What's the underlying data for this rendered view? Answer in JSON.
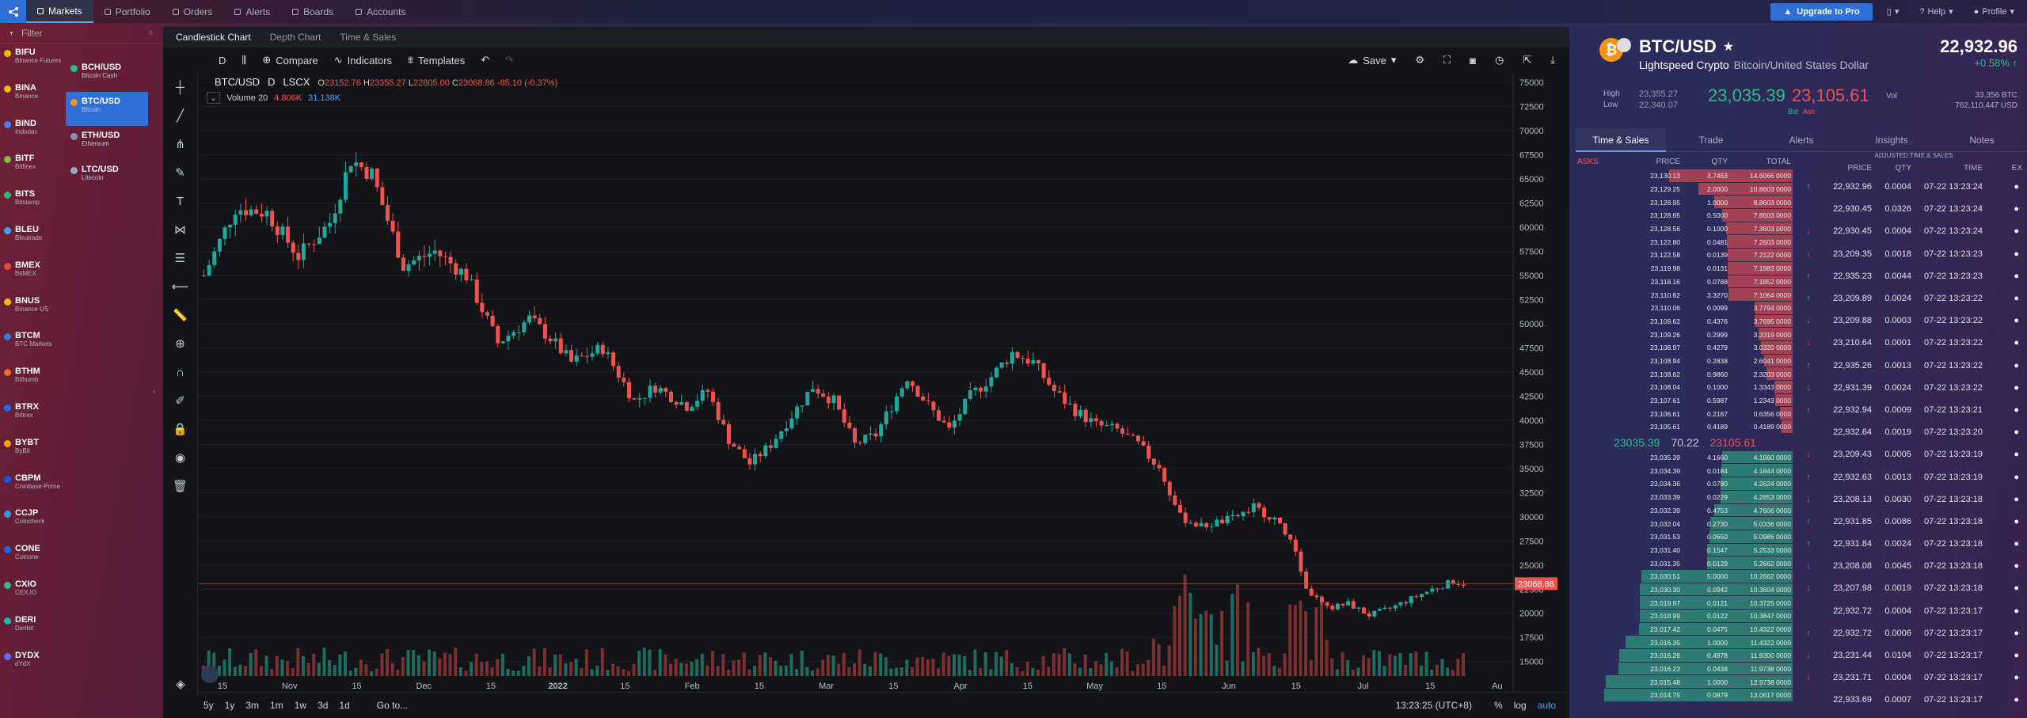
{
  "nav": {
    "items": [
      "Markets",
      "Portfolio",
      "Orders",
      "Alerts",
      "Boards",
      "Accounts"
    ],
    "active": 0,
    "upgrade": "Upgrade to Pro",
    "help": "Help",
    "profile": "Profile"
  },
  "filter": {
    "placeholder": "Filter"
  },
  "exchanges": [
    {
      "code": "BIFU",
      "sub": "Binance Futures",
      "color": "#f0b90b"
    },
    {
      "code": "BINA",
      "sub": "Binance",
      "color": "#f0b90b"
    },
    {
      "code": "BIND",
      "sub": "Indodax",
      "color": "#3b82f6"
    },
    {
      "code": "BITF",
      "sub": "Bitfinex",
      "color": "#7ac142"
    },
    {
      "code": "BITS",
      "sub": "Bitstamp",
      "color": "#2dba6e"
    },
    {
      "code": "BLEU",
      "sub": "Bleutrade",
      "color": "#3da5f4"
    },
    {
      "code": "BMEX",
      "sub": "BitMEX",
      "color": "#e24a4a"
    },
    {
      "code": "BNUS",
      "sub": "Binance US",
      "color": "#f0b90b"
    },
    {
      "code": "BTCM",
      "sub": "BTC Markets",
      "color": "#2f7de1"
    },
    {
      "code": "BTHM",
      "sub": "Bithumb",
      "color": "#f36a23"
    },
    {
      "code": "BTRX",
      "sub": "Bittrex",
      "color": "#1e6ee8"
    },
    {
      "code": "BYBT",
      "sub": "ByBit",
      "color": "#f7a600"
    },
    {
      "code": "CBPM",
      "sub": "Coinbase Prime",
      "color": "#1652f0"
    },
    {
      "code": "CCJP",
      "sub": "Coincheck",
      "color": "#2c9ad8"
    },
    {
      "code": "CONE",
      "sub": "Coinone",
      "color": "#1c64f2"
    },
    {
      "code": "CXIO",
      "sub": "CEX.IO",
      "color": "#2ebd85"
    },
    {
      "code": "DERI",
      "sub": "Deribit",
      "color": "#1bb89f"
    },
    {
      "code": "DYDX",
      "sub": "dYdX",
      "color": "#6966ff"
    }
  ],
  "pairs": [
    {
      "code": "BCH/USD",
      "sub": "Bitcoin Cash",
      "color": "#2ebd85"
    },
    {
      "code": "BTC/USD",
      "sub": "Bitcoin",
      "color": "#f7931a",
      "selected": true
    },
    {
      "code": "ETH/USD",
      "sub": "Ethereum",
      "color": "#8a92b2"
    },
    {
      "code": "LTC/USD",
      "sub": "Litecoin",
      "color": "#a0a6b4"
    }
  ],
  "chart_tabs": [
    "Candlestick Chart",
    "Depth Chart",
    "Time & Sales"
  ],
  "toolbar": {
    "interval": "D",
    "compare": "Compare",
    "indicators": "Indicators",
    "templates": "Templates",
    "save": "Save"
  },
  "legend": {
    "symbol": "BTC/USD",
    "interval": "D",
    "exchange": "LSCX",
    "o_label": "O",
    "o": "23152.76",
    "h_label": "H",
    "h": "23355.27",
    "l_label": "L",
    "l": "22805.00",
    "c_label": "C",
    "c": "23068.86",
    "chg": "-85.10 (-0.37%)",
    "vol_label": "Volume 20",
    "vol1": "4.806K",
    "vol2": "31.138K",
    "last_tag": "23068.86"
  },
  "bottom": {
    "ranges": [
      "5y",
      "1y",
      "3m",
      "1m",
      "1w",
      "3d",
      "1d"
    ],
    "goto": "Go to...",
    "time": "13:23:25 (UTC+8)",
    "pct": "%",
    "log": "log",
    "auto": "auto"
  },
  "chart_data": {
    "type": "candlestick",
    "x_ticks": [
      "15",
      "Nov",
      "15",
      "Dec",
      "15",
      "2022",
      "15",
      "Feb",
      "15",
      "Mar",
      "15",
      "Apr",
      "15",
      "May",
      "15",
      "Jun",
      "15",
      "Jul",
      "15",
      "Au"
    ],
    "y_ticks": [
      75000,
      72500,
      70000,
      67500,
      65000,
      62500,
      60000,
      57500,
      55000,
      52500,
      50000,
      47500,
      45000,
      42500,
      40000,
      37500,
      35000,
      32500,
      30000,
      27500,
      25000,
      22500,
      20000,
      17500,
      15000
    ],
    "ylim": [
      13500,
      75500
    ],
    "close_path": [
      [
        0,
        55000
      ],
      [
        6,
        62000
      ],
      [
        12,
        61500
      ],
      [
        18,
        57000
      ],
      [
        24,
        60500
      ],
      [
        28,
        67000
      ],
      [
        32,
        65500
      ],
      [
        38,
        56000
      ],
      [
        44,
        57500
      ],
      [
        50,
        55000
      ],
      [
        56,
        48000
      ],
      [
        62,
        50500
      ],
      [
        66,
        48500
      ],
      [
        70,
        46000
      ],
      [
        76,
        47500
      ],
      [
        82,
        42000
      ],
      [
        86,
        43500
      ],
      [
        92,
        41500
      ],
      [
        96,
        43000
      ],
      [
        100,
        38000
      ],
      [
        104,
        35500
      ],
      [
        108,
        37500
      ],
      [
        112,
        40500
      ],
      [
        116,
        43500
      ],
      [
        120,
        42000
      ],
      [
        124,
        37500
      ],
      [
        128,
        38500
      ],
      [
        134,
        44500
      ],
      [
        138,
        41500
      ],
      [
        142,
        39000
      ],
      [
        146,
        42500
      ],
      [
        150,
        44500
      ],
      [
        154,
        47000
      ],
      [
        158,
        46000
      ],
      [
        162,
        43000
      ],
      [
        166,
        41000
      ],
      [
        170,
        39500
      ],
      [
        174,
        39000
      ],
      [
        178,
        37500
      ],
      [
        182,
        35000
      ],
      [
        186,
        30000
      ],
      [
        190,
        29000
      ],
      [
        196,
        29800
      ],
      [
        200,
        31000
      ],
      [
        204,
        29800
      ],
      [
        208,
        26500
      ],
      [
        210,
        22500
      ],
      [
        214,
        20500
      ],
      [
        218,
        21000
      ],
      [
        222,
        19800
      ],
      [
        226,
        20500
      ],
      [
        230,
        21500
      ],
      [
        234,
        22500
      ],
      [
        238,
        23300
      ],
      [
        240,
        23068
      ]
    ],
    "volume_scale": "relative"
  },
  "depth": {
    "headers": [
      "ASKS",
      "PRICE",
      "QTY",
      "TOTAL"
    ],
    "asks": [
      [
        "23,130.13",
        "3.7463",
        "14.6066 0000"
      ],
      [
        "23,129.25",
        "2.0000",
        "10.8603 0000"
      ],
      [
        "23,128.95",
        "1.0000",
        "8.8603 0000"
      ],
      [
        "23,128.65",
        "0.5000",
        "7.8603 0000"
      ],
      [
        "23,128.56",
        "0.1000",
        "7.3603 0000"
      ],
      [
        "23,122.80",
        "0.0481",
        "7.2603 0000"
      ],
      [
        "23,122.58",
        "0.0139",
        "7.2122 0000"
      ],
      [
        "23,119.98",
        "0.0131",
        "7.1983 0000"
      ],
      [
        "23,118.16",
        "0.0788",
        "7.1852 0000"
      ],
      [
        "23,110.62",
        "3.3270",
        "7.1064 0000"
      ],
      [
        "23,110.06",
        "0.0099",
        "3.7794 0000"
      ],
      [
        "23,109.62",
        "0.4376",
        "3.7695 0000"
      ],
      [
        "23,109.26",
        "0.2999",
        "3.3319 0000"
      ],
      [
        "23,108.97",
        "0.4279",
        "3.0320 0000"
      ],
      [
        "23,108.94",
        "0.2838",
        "2.6041 0000"
      ],
      [
        "23,108.62",
        "0.9860",
        "2.3203 0000"
      ],
      [
        "23,108.04",
        "0.1000",
        "1.3343 0000"
      ],
      [
        "23,107.61",
        "0.5987",
        "1.2343 0000"
      ],
      [
        "23,106.61",
        "0.2167",
        "0.6356 0000"
      ],
      [
        "23,105.61",
        "0.4189",
        "0.4189 0000"
      ]
    ],
    "mid": {
      "bid": "23035.39",
      "spread": "70.22",
      "ask": "23105.61"
    },
    "bids": [
      [
        "23,035.39",
        "4.1660",
        "4.1660 0000"
      ],
      [
        "23,034.39",
        "0.0184",
        "4.1844 0000"
      ],
      [
        "23,034.36",
        "0.0780",
        "4.2624 0000"
      ],
      [
        "23,033.39",
        "0.0229",
        "4.2853 0000"
      ],
      [
        "23,032.39",
        "0.4753",
        "4.7606 0000"
      ],
      [
        "23,032.04",
        "0.2730",
        "5.0336 0000"
      ],
      [
        "23,031.53",
        "0.0650",
        "5.0986 0000"
      ],
      [
        "23,031.40",
        "0.1547",
        "5.2533 0000"
      ],
      [
        "23,031.35",
        "0.0129",
        "5.2662 0000"
      ],
      [
        "23,030.51",
        "5.0000",
        "10.2662 0000"
      ],
      [
        "23,030.30",
        "0.0942",
        "10.3604 0000"
      ],
      [
        "23,019.97",
        "0.0121",
        "10.3725 0000"
      ],
      [
        "23,018.99",
        "0.0122",
        "10.3847 0000"
      ],
      [
        "23,017.42",
        "0.0475",
        "10.4322 0000"
      ],
      [
        "23,016.35",
        "1.0000",
        "11.4322 0000"
      ],
      [
        "23,016.26",
        "0.4978",
        "11.9300 0000"
      ],
      [
        "23,016.23",
        "0.0438",
        "11.9738 0000"
      ],
      [
        "23,015.48",
        "1.0000",
        "12.9738 0000"
      ],
      [
        "23,014.75",
        "0.0879",
        "13.0617 0000"
      ]
    ]
  },
  "ticker": {
    "symbol": "BTC/USD",
    "exchange": "Lightspeed Crypto",
    "name": "Bitcoin/United States Dollar",
    "price": "22,932.96",
    "change": "+0.58%",
    "high_label": "High",
    "high": "23,355.27",
    "low_label": "Low",
    "low": "22,340.07",
    "bid": "23,035.39",
    "ask": "23,105.61",
    "bid_label": "Bid",
    "ask_label": "Ask",
    "vol_label": "Vol",
    "vol1": "33,356 BTC",
    "vol2": "762,110,447 USD"
  },
  "right_tabs": [
    "Time & Sales",
    "Trade",
    "Alerts",
    "Insights",
    "Notes"
  ],
  "ts": {
    "title": "ADJUSTED TIME & SALES",
    "headers": [
      "PRICE",
      "QTY",
      "TIME",
      "EX"
    ],
    "rows": [
      [
        "up",
        "22,932.96",
        "0.0004",
        "07-22 13:23:24"
      ],
      [
        "none",
        "22,930.45",
        "0.0326",
        "07-22 13:23:24"
      ],
      [
        "down",
        "22,930.45",
        "0.0004",
        "07-22 13:23:24"
      ],
      [
        "down",
        "23,209.35",
        "0.0018",
        "07-22 13:23:23"
      ],
      [
        "up",
        "22,935.23",
        "0.0044",
        "07-22 13:23:23"
      ],
      [
        "up",
        "23,209.89",
        "0.0024",
        "07-22 13:23:22"
      ],
      [
        "down",
        "23,209.88",
        "0.0003",
        "07-22 13:23:22"
      ],
      [
        "down",
        "23,210.64",
        "0.0001",
        "07-22 13:23:22"
      ],
      [
        "up",
        "22,935.26",
        "0.0013",
        "07-22 13:23:22"
      ],
      [
        "down",
        "22,931.39",
        "0.0024",
        "07-22 13:23:22"
      ],
      [
        "up",
        "22,932.94",
        "0.0009",
        "07-22 13:23:21"
      ],
      [
        "none",
        "22,932.64",
        "0.0019",
        "07-22 13:23:20"
      ],
      [
        "down",
        "23,209.43",
        "0.0005",
        "07-22 13:23:19"
      ],
      [
        "up",
        "22,932.63",
        "0.0013",
        "07-22 13:23:19"
      ],
      [
        "down",
        "23,208.13",
        "0.0030",
        "07-22 13:23:18"
      ],
      [
        "up",
        "22,931.85",
        "0.0086",
        "07-22 13:23:18"
      ],
      [
        "up",
        "22,931.84",
        "0.0024",
        "07-22 13:23:18"
      ],
      [
        "down",
        "23,208.08",
        "0.0045",
        "07-22 13:23:18"
      ],
      [
        "down",
        "23,207.98",
        "0.0019",
        "07-22 13:23:18"
      ],
      [
        "none",
        "22,932.72",
        "0.0004",
        "07-22 13:23:17"
      ],
      [
        "up",
        "22,932.72",
        "0.0006",
        "07-22 13:23:17"
      ],
      [
        "down",
        "23,231.44",
        "0.0104",
        "07-22 13:23:17"
      ],
      [
        "down",
        "23,231.71",
        "0.0004",
        "07-22 13:23:17"
      ],
      [
        "none",
        "22,933.69",
        "0.0007",
        "07-22 13:23:17"
      ]
    ]
  }
}
